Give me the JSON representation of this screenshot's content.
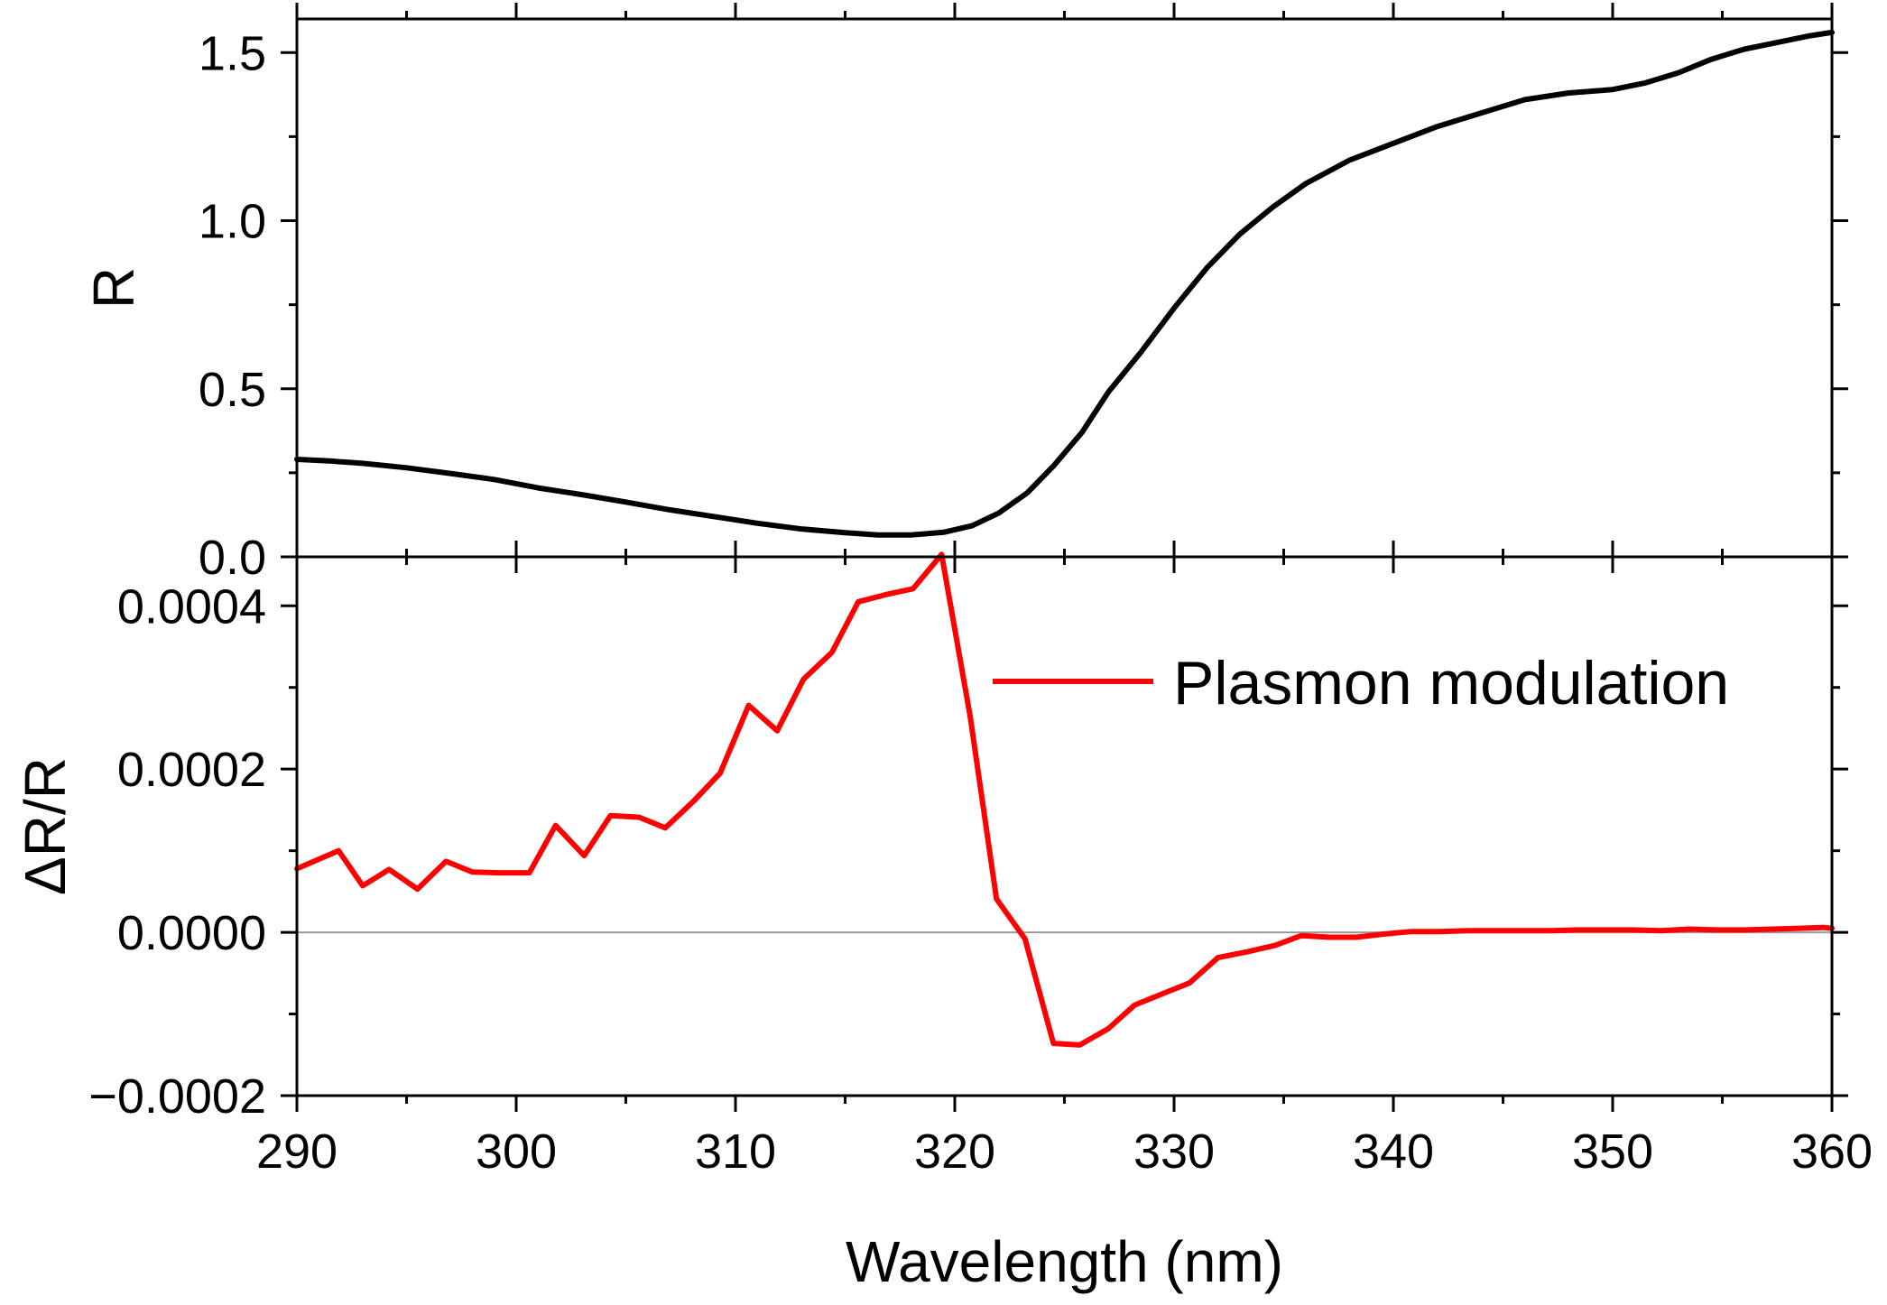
{
  "chart_data": [
    {
      "type": "line",
      "panel": "top",
      "ylabel": "R",
      "xlim": [
        290,
        360
      ],
      "ylim": [
        0,
        1.6
      ],
      "ytick_labels": [
        "0.0",
        "0.5",
        "1.0",
        "1.5"
      ],
      "ytick_values": [
        0,
        0.5,
        1.0,
        1.5
      ],
      "color": "#000000",
      "series": [
        {
          "name": "R",
          "x": [
            290,
            291.5,
            293,
            295,
            297,
            299,
            301,
            303,
            305,
            307,
            309,
            311,
            313,
            315,
            316.5,
            318,
            319.5,
            320.8,
            322,
            323.3,
            324.5,
            325.8,
            327,
            328.5,
            330,
            331.5,
            333,
            334.5,
            336,
            338,
            340,
            342,
            344,
            346,
            348,
            350,
            351.5,
            353,
            354.5,
            356,
            357.5,
            359,
            360
          ],
          "y": [
            0.29,
            0.285,
            0.278,
            0.265,
            0.248,
            0.23,
            0.205,
            0.185,
            0.163,
            0.14,
            0.12,
            0.1,
            0.083,
            0.072,
            0.065,
            0.065,
            0.073,
            0.093,
            0.13,
            0.19,
            0.27,
            0.37,
            0.49,
            0.61,
            0.74,
            0.86,
            0.96,
            1.04,
            1.11,
            1.18,
            1.23,
            1.28,
            1.32,
            1.36,
            1.38,
            1.39,
            1.41,
            1.44,
            1.48,
            1.51,
            1.53,
            1.55,
            1.56
          ]
        }
      ]
    },
    {
      "type": "line",
      "panel": "bottom",
      "ylabel": "ΔR/R",
      "xlabel": "Wavelength (nm)",
      "xlim": [
        290,
        360
      ],
      "ylim": [
        -0.0002,
        0.00046
      ],
      "xtick_labels": [
        "290",
        "300",
        "310",
        "320",
        "330",
        "340",
        "350",
        "360"
      ],
      "xtick_values": [
        290,
        300,
        310,
        320,
        330,
        340,
        350,
        360
      ],
      "ytick_labels": [
        "−0.0002",
        "0.0000",
        "0.0002",
        "0.0004"
      ],
      "ytick_values": [
        -0.0002,
        0,
        0.0002,
        0.0004
      ],
      "zero_line": true,
      "color": "#ff0000",
      "series": [
        {
          "name": "Plasmon modulation",
          "x": [
            290,
            290.6,
            291.9,
            293,
            294.2,
            295.5,
            296.8,
            298,
            299.2,
            300.6,
            301.8,
            303.1,
            304.3,
            305.6,
            306.8,
            308.1,
            309.3,
            310.6,
            311.9,
            313.1,
            314.4,
            315.6,
            316.9,
            318.1,
            319.4,
            320.7,
            321.9,
            323.2,
            324.5,
            325.7,
            327,
            328.2,
            329.5,
            330.7,
            332,
            333.3,
            334.6,
            335.8,
            337.1,
            338.3,
            339.6,
            340.8,
            342.1,
            343.4,
            344.6,
            345.9,
            347.2,
            348.4,
            349.7,
            350.9,
            352.2,
            353.5,
            354.7,
            356,
            357.3,
            358.5,
            359.6,
            360
          ],
          "y": [
            7.8e-05,
            8.5e-05,
            0.0001,
            5.7e-05,
            7.7e-05,
            5.3e-05,
            8.7e-05,
            7.4e-05,
            7.3e-05,
            7.3e-05,
            0.000131,
            9.4e-05,
            0.000143,
            0.000141,
            0.000128,
            0.000161,
            0.000195,
            0.000278,
            0.000247,
            0.00031,
            0.000343,
            0.000405,
            0.000414,
            0.000421,
            0.000463,
            0.000265,
            4.1e-05,
            -8e-06,
            -0.000136,
            -0.000138,
            -0.000118,
            -8.9e-05,
            -7.5e-05,
            -6.2e-05,
            -3.1e-05,
            -2.4e-05,
            -1.6e-05,
            -4e-06,
            -6e-06,
            -6e-06,
            -2e-06,
            1e-06,
            1e-06,
            2e-06,
            2e-06,
            2e-06,
            2e-06,
            3e-06,
            3e-06,
            3e-06,
            2e-06,
            4e-06,
            3e-06,
            3e-06,
            4e-06,
            5e-06,
            6e-06,
            5e-06
          ]
        }
      ]
    }
  ]
}
